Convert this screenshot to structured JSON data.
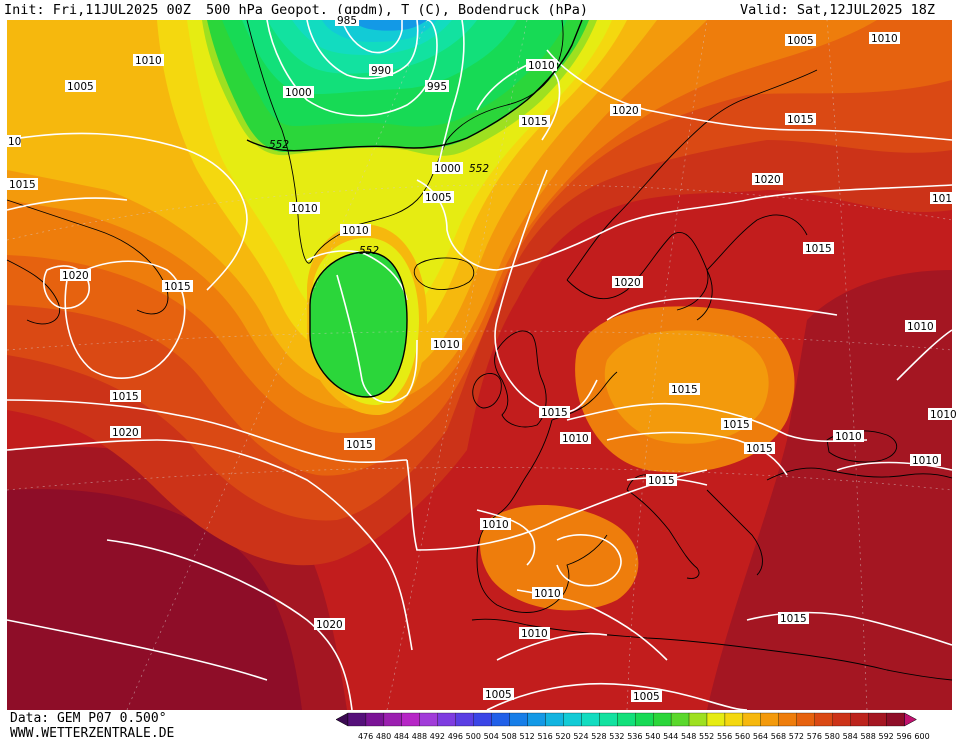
{
  "header": {
    "init": "Init: Fri,11JUL2025 00Z",
    "title": "500 hPa Geopot. (gpdm), T (C), Bodendruck (hPa)",
    "valid": "Valid: Sat,12JUL2025 18Z"
  },
  "footer": {
    "data_source": "Data: GEM P07 0.500°",
    "website": "WWW.WETTERZENTRALE.DE"
  },
  "colorbar": {
    "ticks": [
      "476",
      "480",
      "484",
      "488",
      "492",
      "496",
      "500",
      "504",
      "508",
      "512",
      "516",
      "520",
      "524",
      "528",
      "532",
      "536",
      "540",
      "544",
      "548",
      "552",
      "556",
      "560",
      "564",
      "568",
      "572",
      "576",
      "580",
      "584",
      "588",
      "592",
      "596",
      "600"
    ],
    "colors": [
      "#3b0a52",
      "#55107a",
      "#7a1396",
      "#9b1fb0",
      "#b626c6",
      "#a13cd9",
      "#7e3ce0",
      "#5a3ee3",
      "#3a45e6",
      "#2160e8",
      "#167ee8",
      "#1399e6",
      "#12b4e0",
      "#12cbd6",
      "#12dcc0",
      "#12e2a0",
      "#12e07a",
      "#17da55",
      "#2bd63a",
      "#5ad82c",
      "#9ee020",
      "#e6ec12",
      "#f4d80f",
      "#f6b80d",
      "#f39a0c",
      "#ee7d0c",
      "#e6620f",
      "#da4914",
      "#cc3318",
      "#bc241d",
      "#a41622",
      "#8e0d28",
      "#c0126e"
    ]
  },
  "map": {
    "colors": {
      "c600": "#8e0d28",
      "c596": "#a41622",
      "c592": "#bc241d",
      "c588": "#cc3318",
      "c584": "#da4914",
      "c580": "#e6620f",
      "c576": "#ee7d0c",
      "c572": "#f39a0c",
      "c568": "#f6b80d",
      "c564": "#f4d80f",
      "c560": "#e6ec12",
      "c556": "#9ee020",
      "c552": "#2bd63a",
      "c548": "#17da55",
      "c544": "#12e07a",
      "c540": "#12e2a0",
      "c536": "#12dcc0",
      "c532": "#12cbd6",
      "c528": "#1399e6"
    },
    "geopotential_labels": [
      "552",
      "552",
      "552",
      "552"
    ],
    "isobar_labels": [
      "985",
      "990",
      "995",
      "1000",
      "1000",
      "1005",
      "1010",
      "1010",
      "1010",
      "1010",
      "1005",
      "1005",
      "1010",
      "1015",
      "1020",
      "1020",
      "1015",
      "1015",
      "1015",
      "1020",
      "1015",
      "1015",
      "1015",
      "1020",
      "1010",
      "1015",
      "1010",
      "1015",
      "1010",
      "1015",
      "1010",
      "1010",
      "1015",
      "1010",
      "1010",
      "1010",
      "1010",
      "1010",
      "1005",
      "1005",
      "1020",
      "1015",
      "1015",
      "1010",
      "1010",
      "1020",
      "1015",
      "101",
      "10",
      "1005"
    ]
  }
}
